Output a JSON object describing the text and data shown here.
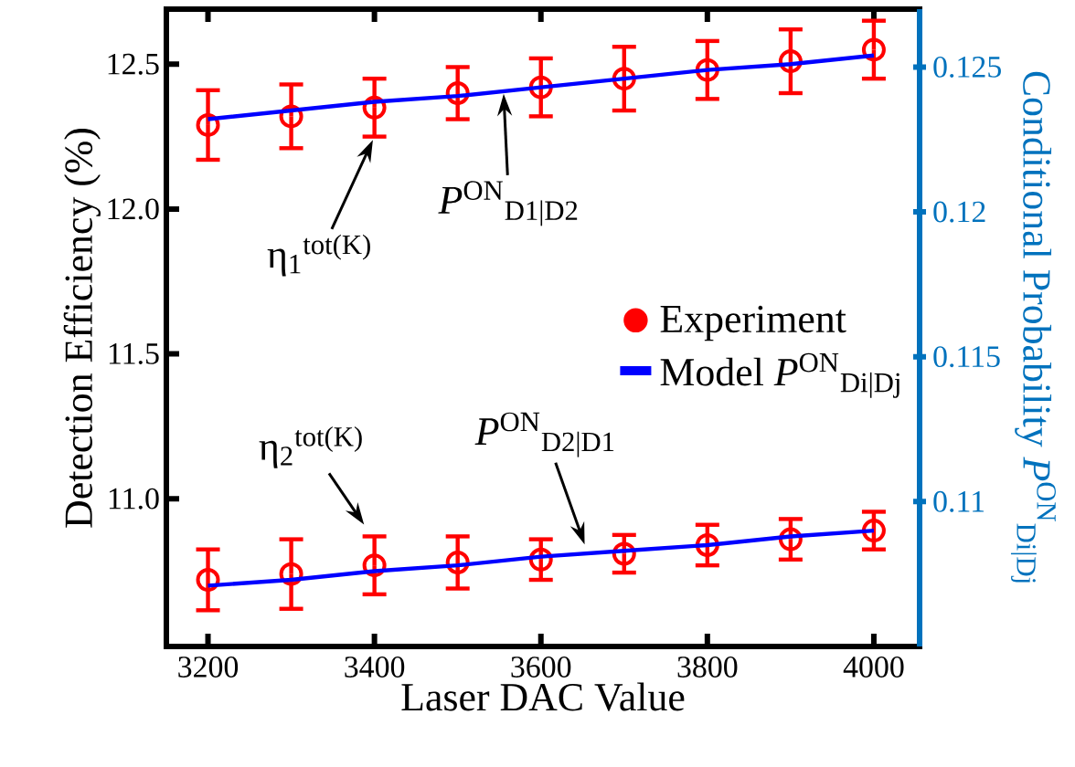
{
  "chart_data": {
    "type": "scatter",
    "xlabel": "Laser DAC Value",
    "ylabel": "Detection Efficiency (%)",
    "y2label": "Conditional Probability *P*$^{ON}$$_{Di|Dj}$",
    "x": [
      3200,
      3300,
      3400,
      3500,
      3600,
      3700,
      3800,
      3900,
      4000
    ],
    "series": [
      {
        "name": "Experiment",
        "axis": "y",
        "color": "#ff0000",
        "marker": "circle",
        "values": [
          12.29,
          12.32,
          12.35,
          12.4,
          12.42,
          12.45,
          12.48,
          12.51,
          12.55
        ],
        "errors": [
          0.12,
          0.11,
          0.1,
          0.09,
          0.1,
          0.11,
          0.1,
          0.11,
          0.1
        ]
      },
      {
        "axis": "y",
        "color": "#ff0000",
        "marker": "circle",
        "values": [
          10.72,
          10.74,
          10.77,
          10.78,
          10.79,
          10.81,
          10.84,
          10.86,
          10.89
        ],
        "errors": [
          0.105,
          0.12,
          0.1,
          0.09,
          0.07,
          0.065,
          0.07,
          0.07,
          0.065
        ]
      },
      {
        "name": "Model *P*$^{ON}$$_{Di|Dj}$",
        "type": "line",
        "axis": "y2",
        "color": "#0000ff",
        "marker": "none",
        "values": [
          0.1232,
          0.1235,
          0.1238,
          0.124,
          0.1243,
          0.1246,
          0.1249,
          0.1251,
          0.1254
        ]
      },
      {
        "type": "line",
        "axis": "y2",
        "color": "#0000ff",
        "marker": "none",
        "values": [
          0.1071,
          0.1073,
          0.1076,
          0.1078,
          0.1081,
          0.1083,
          0.1085,
          0.1088,
          0.109
        ]
      }
    ],
    "xlim": [
      3150,
      4055
    ],
    "xticks": [
      3200,
      3400,
      3600,
      3800,
      4000
    ],
    "ylim": [
      10.49,
      12.69
    ],
    "yticks": [
      {
        "value": 11,
        "label": "11.0"
      },
      {
        "value": 11.5,
        "label": "11.5"
      },
      {
        "value": 12,
        "label": "12.0"
      },
      {
        "value": 12.5,
        "label": "12.5"
      }
    ],
    "y2lim": [
      0.105,
      0.127
    ],
    "y2ticks": [
      0.11,
      0.115,
      0.12,
      0.125
    ],
    "legend": "right",
    "grid": false,
    "annotations": [
      {
        "text": "η$_{1}$$^{tot(K)}$",
        "x": 3400,
        "y": 12.25
      },
      {
        "text": "*P*$^{ON}$$_{D1|D2}$",
        "x": 3555,
        "y": 12.41
      },
      {
        "text": "η$_{2}$$^{tot(K)}$",
        "x": 3390,
        "y": 10.9
      },
      {
        "text": "*P*$^{ON}$$_{D2|D1}$",
        "x": 3654,
        "y": 10.83
      }
    ]
  }
}
